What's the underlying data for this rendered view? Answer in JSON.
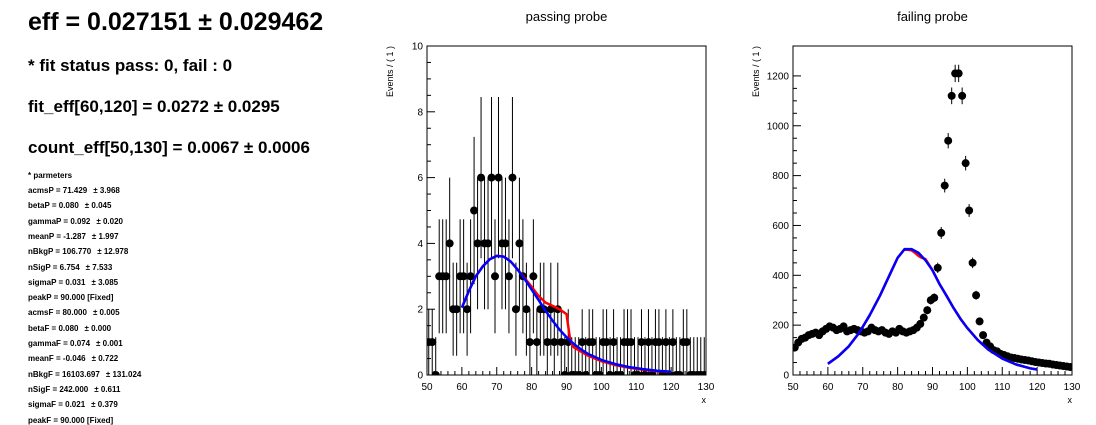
{
  "summary": {
    "eff_line": "eff = 0.027151 ± 0.029462",
    "fit_status": "* fit status pass: 0, fail : 0",
    "fit_eff": "fit_eff[60,120] = 0.0272 ± 0.0295",
    "count_eff": "count_eff[50,130] = 0.0067 ± 0.0006",
    "params_header": "* parmeters",
    "params": [
      {
        "name": "acmsP = 71.429",
        "err": "± 3.968"
      },
      {
        "name": "betaP = 0.080",
        "err": "± 0.045"
      },
      {
        "name": "gammaP = 0.092",
        "err": "± 0.020"
      },
      {
        "name": "meanP = -1.287",
        "err": "± 1.997"
      },
      {
        "name": "nBkgP = 106.770",
        "err": "± 12.978"
      },
      {
        "name": "nSigP = 6.754",
        "err": "± 7.533"
      },
      {
        "name": "sigmaP = 0.031",
        "err": "± 3.085"
      },
      {
        "name": "peakP = 90.000 [Fixed]",
        "err": ""
      },
      {
        "name": "acmsF = 80.000",
        "err": "± 0.005"
      },
      {
        "name": "betaF = 0.080",
        "err": "± 0.000"
      },
      {
        "name": "gammaF = 0.074",
        "err": "± 0.001"
      },
      {
        "name": "meanF = -0.046",
        "err": "± 0.722"
      },
      {
        "name": "nBkgF = 16103.697",
        "err": "± 131.024"
      },
      {
        "name": "nSigF = 242.000",
        "err": "± 0.611"
      },
      {
        "name": "sigmaF = 0.021",
        "err": "± 0.379"
      },
      {
        "name": "peakF = 90.000 [Fixed]",
        "err": ""
      }
    ]
  },
  "chart_data": [
    {
      "type": "scatter",
      "title": "passing probe",
      "xlabel": "x",
      "ylabel": "Events / ( 1 )",
      "xlim": [
        50,
        130
      ],
      "ylim": [
        0,
        10
      ],
      "xticks": [
        50,
        60,
        70,
        80,
        90,
        100,
        110,
        120,
        130
      ],
      "yticks": [
        0,
        2,
        4,
        6,
        8,
        10
      ],
      "points_x": [
        50.5,
        51.5,
        52.5,
        53.5,
        54.5,
        55.5,
        56.5,
        57.5,
        58.5,
        59.5,
        60.5,
        61.5,
        62.5,
        63.5,
        64.5,
        65.5,
        66.5,
        67.5,
        68.5,
        69.5,
        70.5,
        71.5,
        72.5,
        73.5,
        74.5,
        75.5,
        76.5,
        77.5,
        78.5,
        79.5,
        80.5,
        81.5,
        82.5,
        83.5,
        84.5,
        85.5,
        86.5,
        87.5,
        88.5,
        89.5,
        90.5,
        91.5,
        92.5,
        93.5,
        94.5,
        95.5,
        96.5,
        97.5,
        98.5,
        99.5,
        100.5,
        101.5,
        102.5,
        103.5,
        104.5,
        105.5,
        106.5,
        107.5,
        108.5,
        109.5,
        110.5,
        111.5,
        112.5,
        113.5,
        114.5,
        115.5,
        116.5,
        117.5,
        118.5,
        119.5,
        120.5,
        121.5,
        122.5,
        123.5,
        124.5,
        125.5,
        126.5,
        127.5,
        128.5,
        129.5
      ],
      "points_y": [
        1,
        1,
        0,
        3,
        3,
        3,
        4,
        2,
        2,
        3,
        3,
        2,
        3,
        5,
        4,
        6,
        4,
        4,
        6,
        3,
        6,
        4,
        4,
        3,
        6,
        2,
        4,
        3,
        2,
        1,
        3,
        1,
        2,
        2,
        1,
        2,
        1,
        2,
        1,
        0,
        1,
        0,
        0,
        0,
        1,
        0,
        1,
        1,
        0,
        0,
        1,
        1,
        0,
        1,
        0,
        0,
        1,
        1,
        1,
        0,
        0,
        1,
        0,
        1,
        0,
        1,
        1,
        0,
        1,
        0,
        1,
        0,
        0,
        1,
        1,
        0,
        0,
        0,
        0,
        0
      ],
      "series": [
        {
          "name": "",
          "color": "#ff0000",
          "x": [
            60,
            62,
            64,
            66,
            68,
            70,
            72,
            74,
            76,
            78,
            80,
            82,
            84,
            86,
            88,
            90,
            91,
            92,
            94,
            96,
            100,
            104,
            108,
            112,
            116,
            120
          ],
          "y": [
            2.05,
            2.55,
            3.0,
            3.3,
            3.52,
            3.62,
            3.6,
            3.45,
            3.2,
            2.95,
            2.68,
            2.4,
            2.2,
            2.1,
            2.0,
            1.85,
            1.1,
            0.85,
            0.72,
            0.6,
            0.42,
            0.3,
            0.22,
            0.16,
            0.12,
            0.1
          ]
        },
        {
          "name": "",
          "color": "#0000ff",
          "x": [
            60,
            62,
            64,
            66,
            68,
            70,
            72,
            74,
            76,
            78,
            80,
            82,
            84,
            86,
            88,
            90,
            92,
            94,
            96,
            100,
            104,
            108,
            112,
            116,
            120
          ],
          "y": [
            2.05,
            2.55,
            3.0,
            3.3,
            3.52,
            3.62,
            3.6,
            3.45,
            3.2,
            2.92,
            2.6,
            2.28,
            1.95,
            1.65,
            1.38,
            1.15,
            0.95,
            0.79,
            0.65,
            0.46,
            0.33,
            0.24,
            0.18,
            0.13,
            0.1
          ]
        }
      ]
    },
    {
      "type": "scatter",
      "title": "failing probe",
      "xlabel": "x",
      "ylabel": "Events / ( 1 )",
      "xlim": [
        50,
        130
      ],
      "ylim": [
        0,
        1320
      ],
      "xticks": [
        50,
        60,
        70,
        80,
        90,
        100,
        110,
        120,
        130
      ],
      "yticks": [
        0,
        200,
        400,
        600,
        800,
        1000,
        1200
      ],
      "points_x": [
        50.5,
        51.5,
        52.5,
        53.5,
        54.5,
        55.5,
        56.5,
        57.5,
        58.5,
        59.5,
        60.5,
        61.5,
        62.5,
        63.5,
        64.5,
        65.5,
        66.5,
        67.5,
        68.5,
        69.5,
        70.5,
        71.5,
        72.5,
        73.5,
        74.5,
        75.5,
        76.5,
        77.5,
        78.5,
        79.5,
        80.5,
        81.5,
        82.5,
        83.5,
        84.5,
        85.5,
        86.5,
        87.5,
        88.5,
        89.5,
        90.5,
        91.5,
        92.5,
        93.5,
        94.5,
        95.5,
        96.5,
        97.5,
        98.5,
        99.5,
        100.5,
        101.5,
        102.5,
        103.5,
        104.5,
        105.5,
        106.5,
        107.5,
        108.5,
        109.5,
        110.5,
        111.5,
        112.5,
        113.5,
        114.5,
        115.5,
        116.5,
        117.5,
        118.5,
        119.5,
        120.5,
        121.5,
        122.5,
        123.5,
        124.5,
        125.5,
        126.5,
        127.5,
        128.5,
        129.5
      ],
      "points_y": [
        110,
        130,
        145,
        150,
        160,
        165,
        170,
        160,
        175,
        185,
        195,
        190,
        180,
        185,
        195,
        175,
        180,
        185,
        180,
        175,
        170,
        175,
        190,
        180,
        175,
        180,
        170,
        165,
        175,
        170,
        185,
        175,
        170,
        175,
        180,
        190,
        205,
        230,
        260,
        300,
        310,
        430,
        570,
        760,
        940,
        1120,
        1210,
        1210,
        1120,
        850,
        660,
        450,
        320,
        215,
        160,
        130,
        115,
        100,
        95,
        85,
        80,
        75,
        70,
        68,
        65,
        62,
        60,
        58,
        55,
        52,
        50,
        48,
        46,
        45,
        42,
        40,
        38,
        36,
        34,
        32
      ],
      "series": [
        {
          "name": "",
          "color": "#ff0000",
          "x": [
            60,
            63,
            66,
            69,
            72,
            75,
            78,
            80,
            82,
            84,
            85,
            86,
            87,
            88,
            90,
            92,
            94,
            96,
            98,
            100,
            103,
            106,
            110,
            114,
            118,
            120
          ],
          "y": [
            45,
            75,
            115,
            170,
            240,
            320,
            410,
            470,
            505,
            500,
            490,
            478,
            470,
            465,
            420,
            365,
            318,
            270,
            226,
            188,
            140,
            102,
            66,
            42,
            27,
            22
          ]
        },
        {
          "name": "",
          "color": "#0000ff",
          "x": [
            60,
            63,
            66,
            69,
            72,
            75,
            78,
            80,
            82,
            84,
            86,
            88,
            90,
            92,
            94,
            96,
            98,
            100,
            103,
            106,
            110,
            114,
            118,
            120
          ],
          "y": [
            45,
            75,
            115,
            170,
            240,
            320,
            410,
            470,
            505,
            505,
            490,
            460,
            420,
            365,
            318,
            270,
            226,
            188,
            140,
            102,
            66,
            42,
            27,
            22
          ]
        }
      ]
    }
  ]
}
